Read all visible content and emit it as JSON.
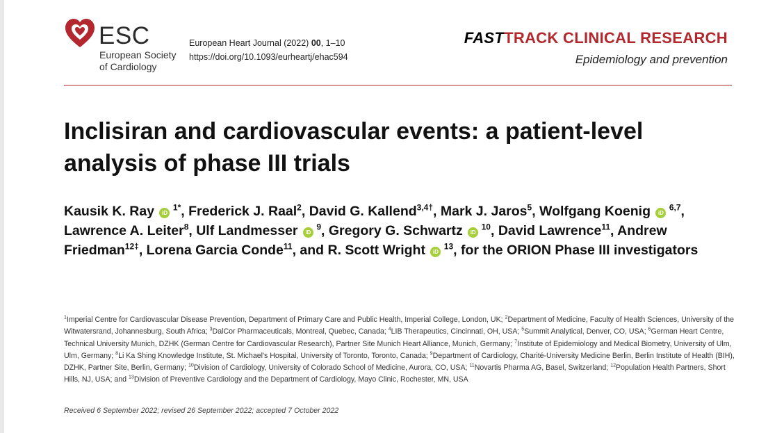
{
  "logo": {
    "abbr": "ESC",
    "line1": "European Society",
    "line2": "of Cardiology",
    "heart_color": "#b3282e"
  },
  "journal": {
    "name": "European Heart Journal (2022)",
    "volume": "00",
    "pages": ", 1–10",
    "doi": "https://doi.org/10.1093/eurheartj/ehac594"
  },
  "header": {
    "fast": "FAST",
    "track": "TRACK CLINICAL RESEARCH",
    "section": "Epidemiology and prevention",
    "accent_color": "#b3282e"
  },
  "title": "Inclisiran and cardiovascular events: a patient-level analysis of phase III trials",
  "authors": {
    "a1": "Kausik K. Ray",
    "a1_sup": "1*",
    "a2": ", Frederick J. Raal",
    "a2_sup": "2",
    "a3": ", David G. Kallend",
    "a3_sup": "3,4†",
    "a4": ", Mark J. Jaros",
    "a4_sup": "5",
    "a5": ", Wolfgang Koenig",
    "a5_sup": "6,7",
    "a6": ", Lawrence A. Leiter",
    "a6_sup": "8",
    "a7": ", Ulf Landmesser",
    "a7_sup": "9",
    "a8": ", Gregory G. Schwartz",
    "a8_sup": "10",
    "a9": ", David Lawrence",
    "a9_sup": "11",
    "a10": ", Andrew Friedman",
    "a10_sup": "12‡",
    "a11": ", Lorena Garcia Conde",
    "a11_sup": "11",
    "a12": ", and R. Scott Wright",
    "a12_sup": "13",
    "tail": ", for the ORION Phase III investigators",
    "orcid_label": "iD"
  },
  "affiliations": {
    "n1": "1",
    "t1": "Imperial Centre for Cardiovascular Disease Prevention, Department of Primary Care and Public Health, Imperial College, London, UK; ",
    "n2": "2",
    "t2": "Department of Medicine, Faculty of Health Sciences, University of the Witwatersrand, Johannesburg, South Africa; ",
    "n3": "3",
    "t3": "DalCor Pharmaceuticals, Montreal, Quebec, Canada; ",
    "n4": "4",
    "t4": "LIB Therapeutics, Cincinnati, OH, USA; ",
    "n5": "5",
    "t5": "Summit Analytical, Denver, CO, USA; ",
    "n6": "6",
    "t6": "German Heart Centre, Technical University Munich, DZHK (German Centre for Cardiovascular Research), Partner Site Munich Heart Alliance, Munich, Germany; ",
    "n7": "7",
    "t7": "Institute of Epidemiology and Medical Biometry, University of Ulm, Ulm, Germany; ",
    "n8": "8",
    "t8": "Li Ka Shing Knowledge Institute, St. Michael's Hospital, University of Toronto, Toronto, Canada; ",
    "n9": "9",
    "t9": "Department of Cardiology, Charité-University Medicine Berlin, Berlin Institute of Health (BIH), DZHK, Partner Site, Berlin, Germany; ",
    "n10": "10",
    "t10": "Division of Cardiology, University of Colorado School of Medicine, Aurora, CO, USA; ",
    "n11": "11",
    "t11": "Novartis Pharma AG, Basel, Switzerland; ",
    "n12": "12",
    "t12": "Population Health Partners, Short Hills, NJ, USA; and ",
    "n13": "13",
    "t13": "Division of Preventive Cardiology and the Department of Cardiology, Mayo Clinic, Rochester, MN, USA"
  },
  "received": "Received 6 September 2022; revised 26 September 2022; accepted 7 October 2022"
}
